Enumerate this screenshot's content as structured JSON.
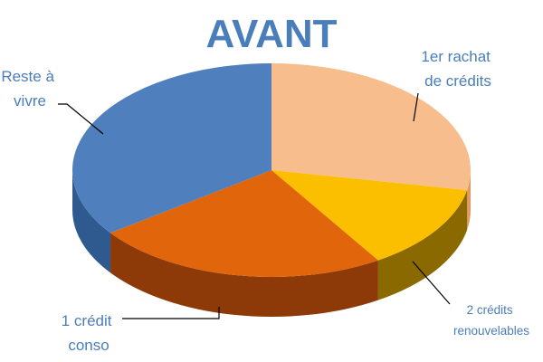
{
  "chart_data": {
    "type": "pie",
    "style": "3d",
    "title": "AVANT",
    "slices": [
      {
        "label": "1er rachat de crédits",
        "lines": [
          "1er rachat",
          "de crédits"
        ],
        "value": 28,
        "color": "#F7BD8C",
        "side": "#E09A60"
      },
      {
        "label": "2 crédits renouvelables",
        "lines": [
          "2 crédits",
          "renouvelables"
        ],
        "value": 13,
        "color": "#FBBF00",
        "side": "#8A6A00"
      },
      {
        "label": "1 crédit conso",
        "lines": [
          "1 crédit",
          "conso"
        ],
        "value": 24,
        "color": "#E1650A",
        "side": "#8E3A08"
      },
      {
        "label": "Reste à vivre",
        "lines": [
          "Reste à",
          "vivre"
        ],
        "value": 35,
        "color": "#4F7FBD",
        "side": "#2F5A8F"
      }
    ],
    "legend": "none"
  }
}
